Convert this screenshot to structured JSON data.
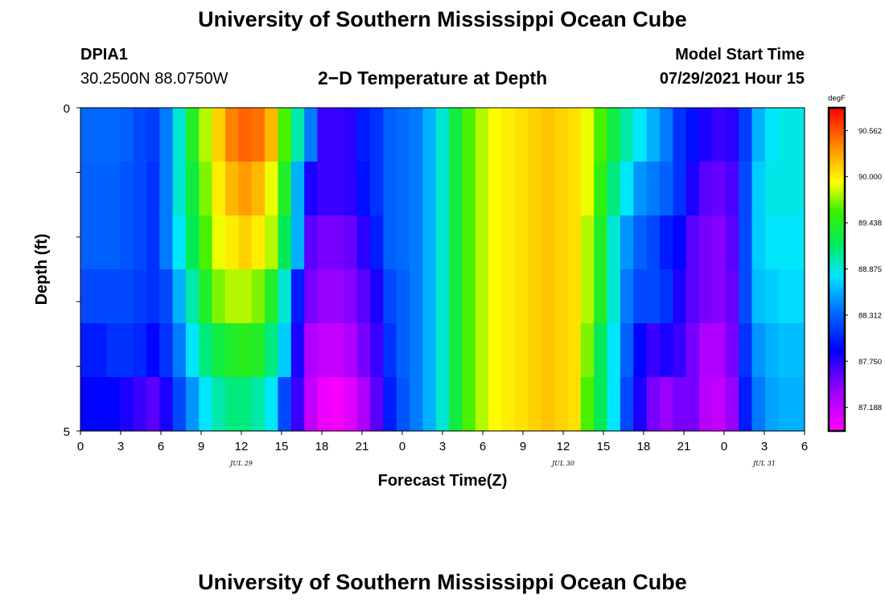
{
  "header": {
    "title": "University of Southern Mississippi Ocean Cube",
    "station": "DPIA1",
    "coords": "30.2500N  88.0750W",
    "plot_title": "2−D Temperature at Depth",
    "model_start_label": "Model Start Time",
    "model_start_value": "07/29/2021 Hour 15"
  },
  "footer": {
    "title": "University of Southern Mississippi Ocean Cube"
  },
  "chart_data": {
    "type": "heatmap",
    "title": "2−D Temperature at Depth",
    "xlabel": "Forecast Time(Z)",
    "ylabel": "Depth (ft)",
    "x_tick_labels": [
      "0",
      "3",
      "6",
      "9",
      "12",
      "15",
      "18",
      "21",
      "0",
      "3",
      "6",
      "9",
      "12",
      "15",
      "18",
      "21",
      "0",
      "3",
      "6"
    ],
    "date_labels": [
      "JUL 29",
      "JUL 30",
      "JUL 31"
    ],
    "y_tick_labels": [
      "0",
      "5"
    ],
    "ylim": [
      0,
      5
    ],
    "colorbar": {
      "unit": "degF",
      "ticks": [
        "90.562",
        "90.000",
        "89.438",
        "88.875",
        "88.312",
        "87.750",
        "87.188"
      ],
      "vmin": 86.9,
      "vmax": 90.84
    },
    "depths_ft": [
      0,
      1,
      2,
      3,
      4,
      5
    ],
    "time_hours": [
      0,
      1,
      2,
      3,
      4,
      5,
      6,
      7,
      8,
      9,
      10,
      11,
      12,
      13,
      14,
      15,
      16,
      17,
      18,
      19,
      20,
      21,
      22,
      23,
      24,
      25,
      26,
      27,
      28,
      29,
      30,
      31,
      32,
      33,
      34,
      35,
      36,
      37,
      38,
      39,
      40,
      41,
      42,
      43,
      44,
      45,
      46,
      47,
      48,
      49,
      50,
      51,
      52,
      53,
      54
    ],
    "temperature_degF": [
      [
        88.33,
        88.33,
        88.33,
        88.3,
        88.2,
        88.15,
        88.4,
        88.9,
        89.4,
        89.8,
        90.1,
        90.4,
        90.5,
        90.45,
        90.2,
        89.6,
        89.0,
        88.4,
        87.7,
        87.7,
        87.75,
        88.0,
        88.1,
        88.3,
        88.35,
        88.4,
        88.6,
        88.9,
        89.3,
        89.6,
        89.8,
        89.95,
        90.0,
        90.05,
        90.1,
        90.15,
        90.1,
        90.05,
        89.9,
        89.6,
        89.3,
        89.0,
        88.8,
        88.6,
        88.4,
        88.1,
        87.95,
        87.8,
        87.7,
        87.75,
        88.15,
        88.6,
        88.8,
        88.85,
        88.85
      ],
      [
        88.3,
        88.3,
        88.3,
        88.25,
        88.2,
        88.1,
        88.4,
        88.9,
        89.3,
        89.7,
        90.0,
        90.2,
        90.3,
        90.2,
        89.9,
        89.4,
        88.6,
        87.8,
        87.7,
        87.7,
        87.75,
        87.95,
        88.1,
        88.3,
        88.35,
        88.4,
        88.6,
        88.9,
        89.3,
        89.6,
        89.8,
        89.95,
        90.0,
        90.05,
        90.1,
        90.15,
        90.1,
        90.05,
        89.9,
        89.5,
        89.1,
        88.8,
        88.5,
        88.4,
        88.3,
        88.1,
        87.8,
        87.6,
        87.55,
        87.65,
        88.2,
        88.7,
        88.85,
        88.85,
        88.85
      ],
      [
        88.3,
        88.3,
        88.3,
        88.25,
        88.2,
        88.1,
        88.4,
        88.8,
        89.2,
        89.6,
        89.9,
        90.0,
        90.1,
        90.0,
        89.8,
        89.2,
        88.6,
        87.6,
        87.5,
        87.5,
        87.55,
        87.75,
        88.0,
        88.3,
        88.35,
        88.4,
        88.6,
        88.9,
        89.3,
        89.6,
        89.8,
        89.95,
        90.0,
        90.05,
        90.1,
        90.15,
        90.1,
        90.05,
        89.8,
        89.4,
        88.9,
        88.5,
        88.3,
        88.2,
        88.0,
        87.9,
        87.6,
        87.5,
        87.45,
        87.6,
        88.2,
        88.7,
        88.8,
        88.8,
        88.8
      ],
      [
        88.2,
        88.2,
        88.2,
        88.2,
        88.15,
        88.1,
        88.2,
        88.6,
        89.0,
        89.4,
        89.7,
        89.8,
        89.8,
        89.7,
        89.4,
        88.9,
        88.0,
        87.5,
        87.4,
        87.4,
        87.45,
        87.6,
        87.8,
        88.2,
        88.3,
        88.4,
        88.6,
        88.9,
        89.3,
        89.6,
        89.8,
        89.95,
        90.0,
        90.05,
        90.1,
        90.15,
        90.1,
        90.05,
        89.8,
        89.4,
        88.9,
        88.4,
        88.2,
        88.2,
        88.1,
        87.8,
        87.6,
        87.5,
        87.45,
        87.55,
        88.2,
        88.65,
        88.7,
        88.75,
        88.75
      ],
      [
        88.0,
        88.0,
        88.1,
        88.1,
        88.05,
        87.9,
        88.1,
        88.4,
        88.8,
        89.1,
        89.3,
        89.4,
        89.45,
        89.4,
        89.1,
        88.7,
        87.8,
        87.3,
        87.2,
        87.2,
        87.3,
        87.5,
        87.7,
        88.1,
        88.3,
        88.4,
        88.6,
        88.9,
        89.3,
        89.6,
        89.8,
        89.95,
        90.0,
        90.05,
        90.1,
        90.15,
        90.1,
        90.05,
        89.7,
        89.2,
        88.8,
        88.3,
        87.9,
        87.7,
        87.8,
        87.7,
        87.5,
        87.3,
        87.3,
        87.5,
        88.1,
        88.5,
        88.6,
        88.65,
        88.65
      ],
      [
        87.9,
        87.9,
        87.9,
        87.8,
        87.7,
        87.6,
        87.8,
        88.2,
        88.5,
        88.8,
        89.0,
        89.1,
        89.1,
        89.0,
        88.8,
        88.2,
        87.7,
        87.2,
        87.0,
        86.95,
        87.05,
        87.3,
        87.6,
        88.0,
        88.25,
        88.4,
        88.6,
        88.9,
        89.3,
        89.6,
        89.8,
        89.95,
        90.0,
        90.05,
        90.1,
        90.15,
        90.1,
        90.05,
        89.6,
        89.2,
        88.8,
        88.2,
        87.8,
        87.5,
        87.4,
        87.5,
        87.5,
        87.25,
        87.2,
        87.4,
        88.0,
        88.4,
        88.55,
        88.6,
        88.6
      ]
    ]
  }
}
